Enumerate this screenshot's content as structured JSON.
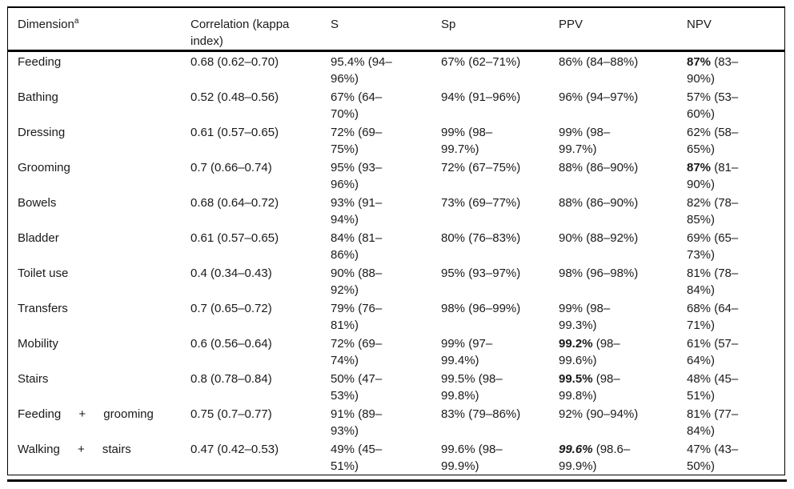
{
  "colors": {
    "border": "#000000",
    "text": "#1a1a1a",
    "background": "#ffffff"
  },
  "table": {
    "columns": [
      {
        "label": "Dimension",
        "sup": "a"
      },
      {
        "label": "Correlation (kappa index)"
      },
      {
        "label": "S"
      },
      {
        "label": "Sp"
      },
      {
        "label": "PPV"
      },
      {
        "label": "NPV"
      }
    ],
    "rows": [
      {
        "dimension": "Feeding",
        "correlation": "0.68 (0.62–0.70)",
        "s": {
          "v": "95.4%",
          "ci": "(94–96%)"
        },
        "sp": {
          "v": "67%",
          "ci": "(62–71%)"
        },
        "ppv": {
          "v": "86%",
          "ci": "(84–88%)"
        },
        "npv": {
          "v": "87%",
          "ci": "(83–90%)",
          "em": "bold"
        }
      },
      {
        "dimension": "Bathing",
        "correlation": "0.52 (0.48–0.56)",
        "s": {
          "v": "67%",
          "ci": "(64–70%)"
        },
        "sp": {
          "v": "94%",
          "ci": "(91–96%)"
        },
        "ppv": {
          "v": "96%",
          "ci": "(94–97%)"
        },
        "npv": {
          "v": "57%",
          "ci": "(53–60%)"
        }
      },
      {
        "dimension": "Dressing",
        "correlation": "0.61 (0.57–0.65)",
        "s": {
          "v": "72%",
          "ci": "(69–75%)"
        },
        "sp": {
          "v": "99%",
          "ci": "(98–99.7%)"
        },
        "ppv": {
          "v": "99%",
          "ci": "(98–99.7%)"
        },
        "npv": {
          "v": "62%",
          "ci": "(58–65%)"
        }
      },
      {
        "dimension": "Grooming",
        "correlation": "0.7 (0.66–0.74)",
        "s": {
          "v": "95%",
          "ci": "(93–96%)"
        },
        "sp": {
          "v": "72%",
          "ci": "(67–75%)"
        },
        "ppv": {
          "v": "88%",
          "ci": "(86–90%)"
        },
        "npv": {
          "v": "87%",
          "ci": "(81–90%)",
          "em": "bold"
        }
      },
      {
        "dimension": "Bowels",
        "correlation": "0.68 (0.64–0.72)",
        "s": {
          "v": "93%",
          "ci": "(91–94%)"
        },
        "sp": {
          "v": "73%",
          "ci": "(69–77%)"
        },
        "ppv": {
          "v": "88%",
          "ci": "(86–90%)"
        },
        "npv": {
          "v": "82%",
          "ci": "(78–85%)"
        }
      },
      {
        "dimension": "Bladder",
        "correlation": "0.61 (0.57–0.65)",
        "s": {
          "v": "84%",
          "ci": "(81–86%)"
        },
        "sp": {
          "v": "80%",
          "ci": "(76–83%)"
        },
        "ppv": {
          "v": "90%",
          "ci": "(88–92%)"
        },
        "npv": {
          "v": "69%",
          "ci": "(65–73%)"
        }
      },
      {
        "dimension": "Toilet use",
        "correlation": "0.4 (0.34–0.43)",
        "s": {
          "v": "90%",
          "ci": "(88–92%)"
        },
        "sp": {
          "v": "95%",
          "ci": "(93–97%)"
        },
        "ppv": {
          "v": "98%",
          "ci": "(96–98%)"
        },
        "npv": {
          "v": "81%",
          "ci": "(78–84%)"
        }
      },
      {
        "dimension": "Transfers",
        "correlation": "0.7 (0.65–0.72)",
        "s": {
          "v": "79%",
          "ci": "(76–81%)"
        },
        "sp": {
          "v": "98%",
          "ci": "(96–99%)"
        },
        "ppv": {
          "v": "99%",
          "ci": "(98–99.3%)"
        },
        "npv": {
          "v": "68%",
          "ci": "(64–71%)"
        }
      },
      {
        "dimension": "Mobility",
        "correlation": "0.6 (0.56–0.64)",
        "s": {
          "v": "72%",
          "ci": "(69–74%)"
        },
        "sp": {
          "v": "99%",
          "ci": "(97–99.4%)"
        },
        "ppv": {
          "v": "99.2%",
          "ci": "(98–99.6%)",
          "em": "bold"
        },
        "npv": {
          "v": "61%",
          "ci": "(57–64%)"
        }
      },
      {
        "dimension": "Stairs",
        "correlation": "0.8 (0.78–0.84)",
        "s": {
          "v": "50%",
          "ci": "(47–53%)"
        },
        "sp": {
          "v": "99.5%",
          "ci": "(98–99.8%)"
        },
        "ppv": {
          "v": "99.5%",
          "ci": "(98–99.8%)",
          "em": "bold"
        },
        "npv": {
          "v": "48%",
          "ci": "(45–51%)"
        }
      },
      {
        "dimension": "Feeding + grooming",
        "spread": true,
        "correlation": "0.75 (0.7–0.77)",
        "s": {
          "v": "91%",
          "ci": "(89–93%)"
        },
        "sp": {
          "v": "83%",
          "ci": "(79–86%)"
        },
        "ppv": {
          "v": "92%",
          "ci": "(90–94%)"
        },
        "npv": {
          "v": "81%",
          "ci": "(77–84%)"
        }
      },
      {
        "dimension": "Walking + stairs",
        "spread": true,
        "correlation": "0.47 (0.42–0.53)",
        "s": {
          "v": "49%",
          "ci": "(45–51%)"
        },
        "sp": {
          "v": "99.6%",
          "ci": "(98–99.9%)"
        },
        "ppv": {
          "v": "99.6%",
          "ci": "(98.6–99.9%)",
          "em": "bold-italic"
        },
        "npv": {
          "v": "47%",
          "ci": "(43–50%)"
        }
      }
    ]
  }
}
